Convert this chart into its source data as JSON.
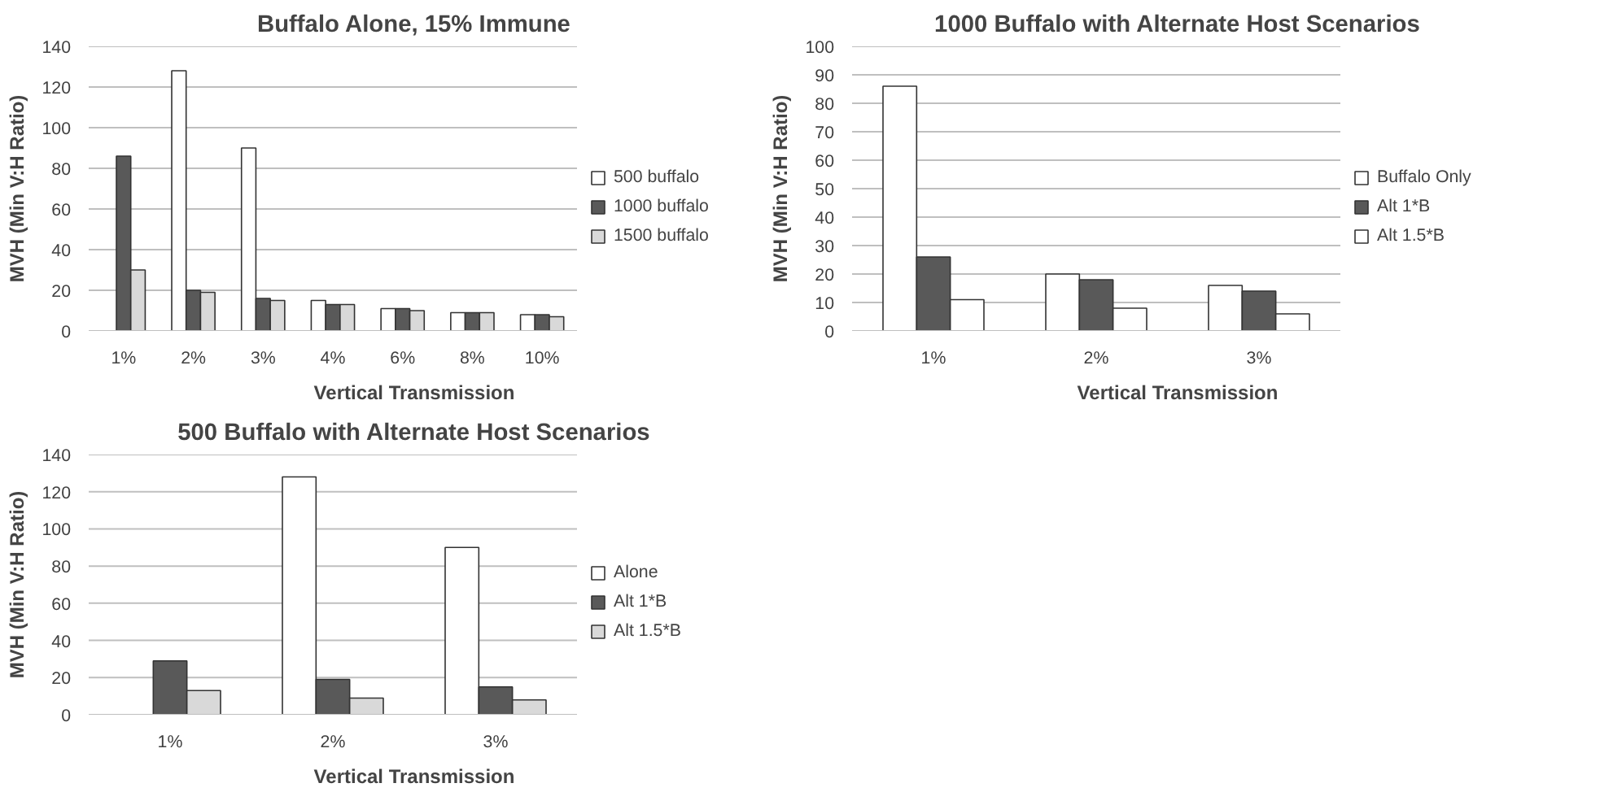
{
  "chart_data": [
    {
      "type": "bar",
      "title": "Buffalo Alone, 15% Immune",
      "xlabel": "Vertical Transmission",
      "ylabel": "MVH (Min V:H Ratio)",
      "categories": [
        "1%",
        "2%",
        "3%",
        "4%",
        "6%",
        "8%",
        "10%"
      ],
      "ylim": [
        0,
        140
      ],
      "yticks": [
        0,
        20,
        40,
        60,
        80,
        100,
        120,
        140
      ],
      "grid": "y",
      "legend": "right",
      "series": [
        {
          "name": "500 buffalo",
          "color": "#ffffff",
          "values": [
            null,
            128,
            90,
            15,
            11,
            9,
            8
          ]
        },
        {
          "name": "1000 buffalo",
          "color": "#595959",
          "values": [
            86,
            20,
            16,
            13,
            11,
            9,
            8
          ]
        },
        {
          "name": "1500 buffalo",
          "color": "#d9d9d9",
          "values": [
            30,
            19,
            15,
            13,
            10,
            9,
            7
          ]
        }
      ]
    },
    {
      "type": "bar",
      "title": "1000 Buffalo with Alternate Host Scenarios",
      "xlabel": "Vertical Transmission",
      "ylabel": "MVH (Min V:H Ratio)",
      "categories": [
        "1%",
        "2%",
        "3%"
      ],
      "ylim": [
        0,
        100
      ],
      "yticks": [
        0,
        10,
        20,
        30,
        40,
        50,
        60,
        70,
        80,
        90,
        100
      ],
      "grid": "y",
      "legend": "right",
      "series": [
        {
          "name": "Buffalo Only",
          "color": "#ffffff",
          "values": [
            86,
            20,
            16
          ]
        },
        {
          "name": "Alt 1*B",
          "color": "#595959",
          "values": [
            26,
            18,
            14
          ]
        },
        {
          "name": "Alt 1.5*B",
          "color": "#ffffff",
          "values": [
            11,
            8,
            6
          ]
        }
      ]
    },
    {
      "type": "bar",
      "title": "500 Buffalo with Alternate Host Scenarios",
      "xlabel": "Vertical Transmission",
      "ylabel": "MVH (Min V:H Ratio)",
      "categories": [
        "1%",
        "2%",
        "3%"
      ],
      "ylim": [
        0,
        140
      ],
      "yticks": [
        0,
        20,
        40,
        60,
        80,
        100,
        120,
        140
      ],
      "grid": "y",
      "legend": "right",
      "series": [
        {
          "name": "Alone",
          "color": "#ffffff",
          "values": [
            null,
            128,
            90
          ]
        },
        {
          "name": "Alt 1*B",
          "color": "#595959",
          "values": [
            29,
            19,
            15
          ]
        },
        {
          "name": "Alt 1.5*B",
          "color": "#d9d9d9",
          "values": [
            13,
            9,
            8
          ]
        }
      ]
    }
  ]
}
